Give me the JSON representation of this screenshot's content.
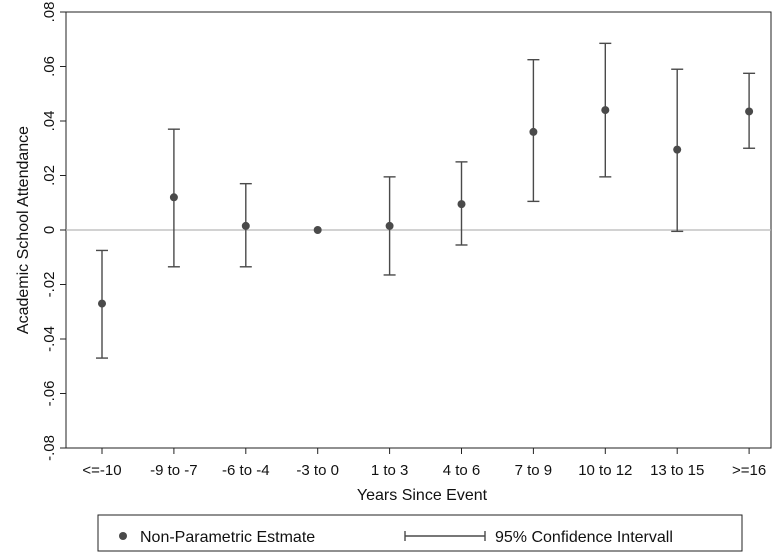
{
  "chart_data": {
    "type": "scatter",
    "title": "",
    "xlabel": "Years Since Event",
    "ylabel": "Academic School Attendance",
    "categories": [
      "<=-10",
      "-9 to -7",
      "-6 to -4",
      "-3 to 0",
      "1 to 3",
      "4 to 6",
      "7 to 9",
      "10 to 12",
      "13 to 15",
      ">=16"
    ],
    "ylim": [
      -0.08,
      0.08
    ],
    "yticks": [
      -0.08,
      -0.06,
      -0.04,
      -0.02,
      0,
      0.02,
      0.04,
      0.06,
      0.08
    ],
    "ytick_labels": [
      "-.08",
      "-.06",
      "-.04",
      "-.02",
      "0",
      ".02",
      ".04",
      ".06",
      ".08"
    ],
    "reference_line_y": 0,
    "grid": false,
    "series": [
      {
        "name": "Non-Parametric Estmate",
        "values": [
          -0.027,
          0.012,
          0.0015,
          0.0,
          0.0015,
          0.0095,
          0.036,
          0.044,
          0.0295,
          0.0435
        ]
      },
      {
        "name": "95% Confidence Intervall",
        "lower": [
          -0.047,
          -0.0135,
          -0.0135,
          0.0,
          -0.0165,
          -0.0055,
          0.0105,
          0.0195,
          -0.0005,
          0.03
        ],
        "upper": [
          -0.0075,
          0.037,
          0.017,
          0.0,
          0.0195,
          0.025,
          0.0625,
          0.0685,
          0.059,
          0.0575
        ]
      }
    ],
    "legend": {
      "position": "bottom",
      "entries": [
        "Non-Parametric Estmate",
        "95% Confidence Intervall"
      ]
    },
    "colors": {
      "marker": "#4a4a4a",
      "errorbar": "#4a4a4a",
      "reference_line": "#b8b8b8",
      "axis": "#222222"
    }
  }
}
